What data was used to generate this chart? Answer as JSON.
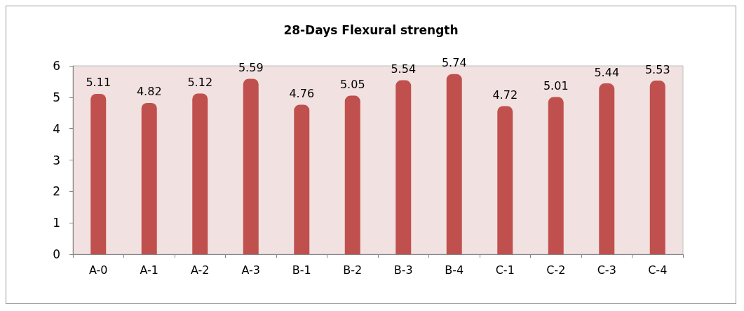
{
  "chart_data": {
    "type": "bar",
    "title": "28-Days Flexural strength",
    "categories": [
      "A-0",
      "A-1",
      "A-2",
      "A-3",
      "B-1",
      "B-2",
      "B-3",
      "B-4",
      "C-1",
      "C-2",
      "C-3",
      "C-4"
    ],
    "values": [
      5.11,
      4.82,
      5.12,
      5.59,
      4.76,
      5.05,
      5.54,
      5.74,
      4.72,
      5.01,
      5.44,
      5.53
    ],
    "color": "#c0504d",
    "ylim": [
      0,
      6
    ],
    "yticks": [
      0,
      1,
      2,
      3,
      4,
      5,
      6
    ],
    "grid": false,
    "data_labels": true
  }
}
